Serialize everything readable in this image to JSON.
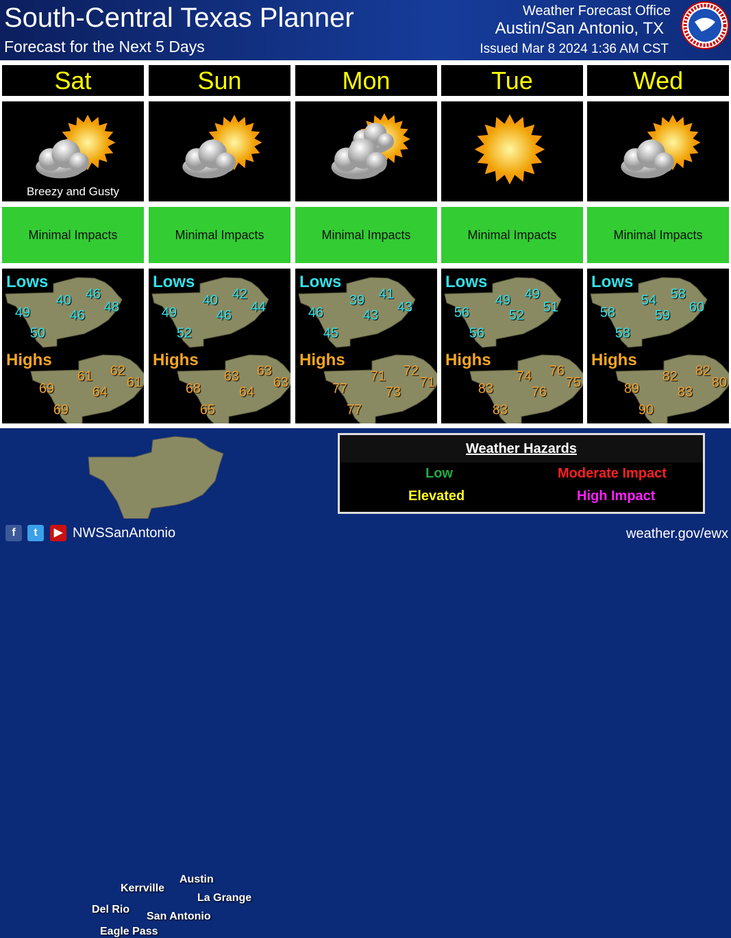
{
  "header": {
    "title": "South-Central Texas Planner",
    "subtitle": "Forecast for the Next 5 Days",
    "office_line1": "Weather Forecast Office",
    "office_line2": "Austin/San Antonio, TX",
    "issued": "Issued Mar 8 2024 1:36 AM CST",
    "logo_text": "NATIONAL WEATHER SERVICE"
  },
  "days": [
    {
      "name": "Sat",
      "icon": "partly-cloudy-icon",
      "note": "Breezy and Gusty",
      "impact": "Minimal Impacts",
      "lows_label": "Lows",
      "highs_label": "Highs",
      "lows": [
        "49",
        "40",
        "46",
        "48",
        "46",
        "50"
      ],
      "highs": [
        "69",
        "61",
        "62",
        "61",
        "64",
        "69"
      ]
    },
    {
      "name": "Sun",
      "icon": "partly-cloudy-icon",
      "note": "",
      "impact": "Minimal Impacts",
      "lows_label": "Lows",
      "highs_label": "Highs",
      "lows": [
        "49",
        "40",
        "42",
        "44",
        "46",
        "52"
      ],
      "highs": [
        "68",
        "63",
        "63",
        "63",
        "64",
        "65"
      ]
    },
    {
      "name": "Mon",
      "icon": "mostly-cloudy-icon",
      "note": "",
      "impact": "Minimal Impacts",
      "lows_label": "Lows",
      "highs_label": "Highs",
      "lows": [
        "46",
        "39",
        "41",
        "43",
        "43",
        "45"
      ],
      "highs": [
        "77",
        "71",
        "72",
        "71",
        "73",
        "77"
      ]
    },
    {
      "name": "Tue",
      "icon": "sunny-icon",
      "note": "",
      "impact": "Minimal Impacts",
      "lows_label": "Lows",
      "highs_label": "Highs",
      "lows": [
        "56",
        "49",
        "49",
        "51",
        "52",
        "56"
      ],
      "highs": [
        "83",
        "74",
        "76",
        "75",
        "76",
        "83"
      ]
    },
    {
      "name": "Wed",
      "icon": "partly-cloudy-icon",
      "note": "",
      "impact": "Minimal Impacts",
      "lows_label": "Lows",
      "highs_label": "Highs",
      "lows": [
        "58",
        "54",
        "58",
        "60",
        "59",
        "58"
      ],
      "highs": [
        "89",
        "82",
        "82",
        "80",
        "83",
        "90"
      ]
    }
  ],
  "colors": {
    "impact_minimal": "#33cc33",
    "day_text": "#ffff00",
    "lows": "#33e0e8",
    "highs": "#f5a623",
    "background": "#0b2a78"
  },
  "cities": [
    "Kerrville",
    "Austin",
    "La Grange",
    "Del Rio",
    "San Antonio",
    "Eagle Pass"
  ],
  "hazards": {
    "title": "Weather Hazards",
    "items": [
      {
        "label": "Low",
        "color": "#22aa44"
      },
      {
        "label": "Moderate Impact",
        "color": "#ff2020"
      },
      {
        "label": "Elevated",
        "color": "#ffff20"
      },
      {
        "label": "High Impact",
        "color": "#ff20ff"
      }
    ]
  },
  "footer": {
    "handle": "NWSSanAntonio",
    "url": "weather.gov/ewx",
    "social": [
      "facebook-icon",
      "twitter-icon",
      "youtube-icon"
    ]
  }
}
